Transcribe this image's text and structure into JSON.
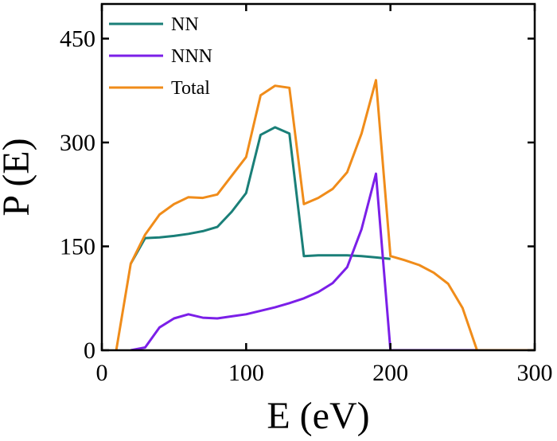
{
  "chart_data": {
    "type": "line",
    "xlabel": "E (eV)",
    "ylabel": "P (E)",
    "xlim": [
      0,
      300
    ],
    "ylim": [
      0,
      500
    ],
    "xticks": [
      0,
      100,
      200,
      300
    ],
    "yticks": [
      0,
      150,
      300,
      450
    ],
    "grid": false,
    "legend_position": "top-left",
    "series": [
      {
        "name": "NN",
        "color": "#1a7f78",
        "points": [
          [
            20,
            125
          ],
          [
            30,
            162
          ],
          [
            40,
            163
          ],
          [
            50,
            165
          ],
          [
            60,
            168
          ],
          [
            70,
            172
          ],
          [
            80,
            178
          ],
          [
            90,
            200
          ],
          [
            100,
            227
          ],
          [
            110,
            311
          ],
          [
            120,
            322
          ],
          [
            130,
            313
          ],
          [
            140,
            136
          ],
          [
            150,
            137
          ],
          [
            160,
            137
          ],
          [
            170,
            137
          ],
          [
            180,
            136
          ],
          [
            190,
            134
          ],
          [
            200,
            132
          ]
        ]
      },
      {
        "name": "NNN",
        "color": "#7b1fe8",
        "points": [
          [
            20,
            0
          ],
          [
            30,
            4
          ],
          [
            40,
            33
          ],
          [
            50,
            46
          ],
          [
            60,
            52
          ],
          [
            70,
            47
          ],
          [
            80,
            46
          ],
          [
            90,
            49
          ],
          [
            100,
            52
          ],
          [
            110,
            57
          ],
          [
            120,
            62
          ],
          [
            130,
            68
          ],
          [
            140,
            75
          ],
          [
            150,
            84
          ],
          [
            160,
            97
          ],
          [
            170,
            120
          ],
          [
            180,
            175
          ],
          [
            190,
            255
          ],
          [
            200,
            0
          ],
          [
            260,
            0
          ]
        ]
      },
      {
        "name": "Total",
        "color": "#f08c1a",
        "points": [
          [
            10,
            0
          ],
          [
            20,
            125
          ],
          [
            30,
            167
          ],
          [
            40,
            196
          ],
          [
            50,
            211
          ],
          [
            60,
            221
          ],
          [
            70,
            220
          ],
          [
            80,
            225
          ],
          [
            90,
            252
          ],
          [
            100,
            279
          ],
          [
            110,
            368
          ],
          [
            120,
            382
          ],
          [
            130,
            379
          ],
          [
            140,
            211
          ],
          [
            150,
            220
          ],
          [
            160,
            233
          ],
          [
            170,
            257
          ],
          [
            180,
            313
          ],
          [
            190,
            390
          ],
          [
            200,
            136
          ],
          [
            210,
            130
          ],
          [
            220,
            123
          ],
          [
            230,
            112
          ],
          [
            240,
            96
          ],
          [
            250,
            61
          ],
          [
            260,
            0
          ],
          [
            300,
            0
          ]
        ]
      }
    ]
  }
}
